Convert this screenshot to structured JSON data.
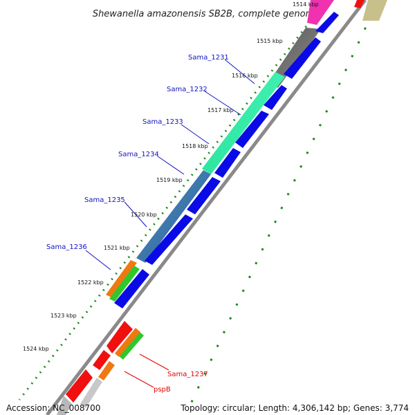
{
  "title": "Shewanella amazonensis SB2B, complete genome",
  "footer": {
    "accession": "Accession: NC_008700",
    "summary": "Topology: circular; Length: 4,306,142 bp; Genes: 3,774"
  },
  "ruler_labels": [
    "1514 kbp",
    "1515 kbp",
    "1516 kbp",
    "1517 kbp",
    "1518 kbp",
    "1519 kbp",
    "1520 kbp",
    "1521 kbp",
    "1522 kbp",
    "1523 kbp",
    "1524 kbp"
  ],
  "gene_labels": [
    {
      "text": "Sama_1231",
      "color": "#1010c0"
    },
    {
      "text": "Sama_1232",
      "color": "#1010c0"
    },
    {
      "text": "Sama_1233",
      "color": "#1010c0"
    },
    {
      "text": "Sama_1234",
      "color": "#1010c0"
    },
    {
      "text": "Sama_1235",
      "color": "#1010c0"
    },
    {
      "text": "Sama_1236",
      "color": "#1010c0"
    },
    {
      "text": "Sama_1237",
      "color": "#e00000"
    },
    {
      "text": "pspB",
      "color": "#e00000"
    }
  ],
  "colors": {
    "backbone": "#8a8a8a",
    "cds": "#0a0ae6",
    "ticks": "#1a8a1a"
  }
}
